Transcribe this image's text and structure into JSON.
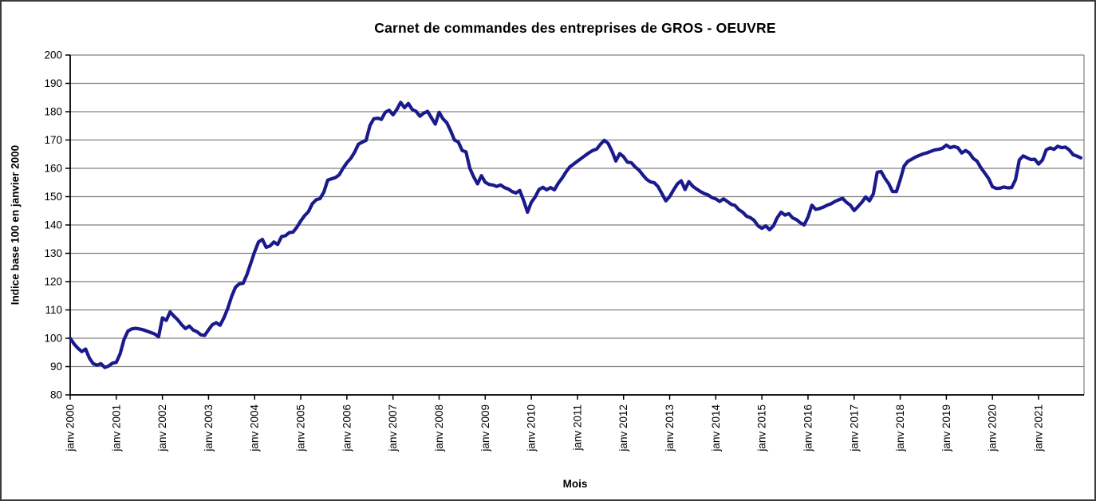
{
  "chart_data": {
    "type": "line",
    "title": "Carnet de commandes des entreprises de GROS - OEUVRE",
    "xlabel": "Mois",
    "ylabel": "Indice base 100 en janvier 2000",
    "ylim": [
      80,
      200
    ],
    "ytick_step": 10,
    "grid": "horizontal",
    "legend": "none",
    "points_per_year": 12,
    "x_start": "janv 2000",
    "x_end": "dec 2021",
    "x_tick_labels": [
      "janv 2000",
      "janv 2001",
      "janv 2002",
      "janv 2003",
      "janv 2004",
      "janv 2005",
      "janv 2006",
      "janv 2007",
      "janv 2008",
      "janv 2009",
      "janv 2010",
      "janv 2011",
      "janv 2012",
      "janv 2013",
      "janv 2014",
      "janv 2015",
      "janv 2016",
      "janv 2017",
      "janv 2018",
      "janv 2019",
      "janv 2020",
      "janv 2021"
    ],
    "colors": {
      "line": "#1A1A8C",
      "grid": "#808080",
      "axis": "#000000",
      "text": "#000000",
      "background": "#ffffff",
      "border": "#3a3a3a"
    },
    "series": [
      {
        "name": "Carnet de commandes",
        "values": [
          100,
          98,
          96.5,
          95.3,
          96.2,
          93,
          91,
          90.5,
          91,
          89.7,
          90.2,
          91.2,
          91.5,
          94.5,
          99.5,
          102.5,
          103.3,
          103.5,
          103.3,
          103,
          102.5,
          102,
          101.5,
          100.5,
          107.2,
          106.3,
          109.3,
          107.8,
          106.5,
          104.8,
          103.4,
          104.3,
          102.9,
          102.3,
          101.2,
          101,
          103,
          104.8,
          105.5,
          104.6,
          107.2,
          110.5,
          114.7,
          118,
          119.2,
          119.4,
          122.5,
          126.5,
          130.5,
          134,
          134.9,
          132.1,
          132.6,
          134,
          133.1,
          135.9,
          136.2,
          137.3,
          137.5,
          139.2,
          141.4,
          143.3,
          144.7,
          147.5,
          148.9,
          149.3,
          151.6,
          155.8,
          156.3,
          156.7,
          157.7,
          160,
          162,
          163.5,
          165.7,
          168.5,
          169.2,
          169.9,
          175.1,
          177.5,
          177.7,
          177.3,
          179.8,
          180.5,
          178.9,
          180.8,
          183.3,
          181.4,
          182.9,
          180.8,
          180.1,
          178.4,
          179.5,
          180.1,
          177.9,
          175.6,
          179.8,
          177.5,
          176.1,
          173.3,
          170,
          169.3,
          166.3,
          165.8,
          160,
          157,
          154.5,
          157.4,
          155.1,
          154.3,
          154.1,
          153.6,
          154.1,
          153.2,
          152.7,
          151.8,
          151.3,
          152.2,
          148.6,
          144.5,
          148,
          149.9,
          152.5,
          153.3,
          152.4,
          153.2,
          152.4,
          154.7,
          156.5,
          158.7,
          160.5,
          161.5,
          162.5,
          163.5,
          164.5,
          165.5,
          166.3,
          166.8,
          168.5,
          169.9,
          168.8,
          166,
          162.6,
          165.2,
          164.1,
          162.2,
          162,
          160.5,
          159.4,
          157.7,
          156.1,
          155.2,
          154.9,
          153.5,
          151,
          148.5,
          150,
          152.3,
          154.5,
          155.6,
          152.5,
          155.3,
          153.7,
          152.7,
          151.8,
          151.1,
          150.6,
          149.7,
          149.2,
          148.3,
          149.2,
          148.3,
          147.3,
          146.9,
          145.4,
          144.5,
          143.1,
          142.6,
          141.6,
          139.7,
          138.8,
          139.7,
          138.3,
          139.7,
          142.6,
          144.5,
          143.5,
          144,
          142.5,
          141.9,
          140.8,
          140,
          142.8,
          147,
          145.5,
          145.8,
          146.3,
          147,
          147.5,
          148.3,
          148.9,
          149.4,
          148,
          147,
          145.1,
          146.5,
          148,
          149.9,
          148.5,
          151,
          158.6,
          158.9,
          156.5,
          154.6,
          151.8,
          151.8,
          156,
          160.8,
          162.5,
          163.2,
          164,
          164.6,
          165.1,
          165.5,
          166,
          166.5,
          166.7,
          167.1,
          168.2,
          167.3,
          167.7,
          167.3,
          165.4,
          166.3,
          165.4,
          163.5,
          162.5,
          160.2,
          158.3,
          156.4,
          153.5,
          152.9,
          153,
          153.4,
          153.1,
          153.2,
          156,
          163,
          164.4,
          163.7,
          163.1,
          163.2,
          161.5,
          162.9,
          166.5,
          167.2,
          166.7,
          167.8,
          167.3,
          167.5,
          166.5,
          164.8,
          164.3,
          163.7
        ]
      }
    ]
  }
}
